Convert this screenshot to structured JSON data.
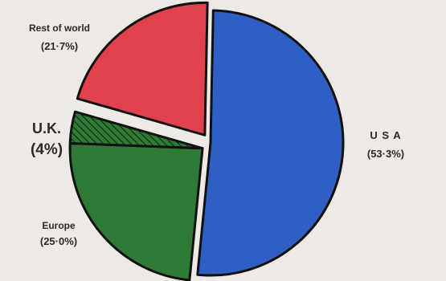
{
  "chart_data": {
    "type": "pie",
    "slices": [
      {
        "label": "U S A",
        "value_text": "(53·3%)",
        "value": 53.3,
        "color": "#2f5fc4",
        "exploded": false,
        "hatched": false
      },
      {
        "label": "Europe",
        "value_text": "(25·0%)",
        "value": 25.0,
        "color": "#2e7a36",
        "exploded": true,
        "hatched": false
      },
      {
        "label": "U.K.",
        "value_text": "(4%)",
        "value": 4.0,
        "color": "#2e7a36",
        "exploded": true,
        "hatched": true
      },
      {
        "label": "Rest of world",
        "value_text": "(21·7%)",
        "value": 21.7,
        "color": "#e0414d",
        "exploded": true,
        "hatched": false
      }
    ],
    "outline_color": "#111111",
    "background_color": "#ede9e4",
    "legend": "none"
  }
}
